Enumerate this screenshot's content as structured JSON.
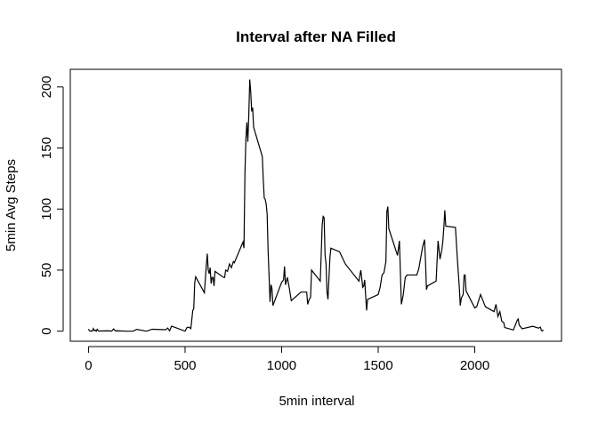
{
  "chart_data": {
    "type": "line",
    "title": "Interval after NA Filled",
    "xlabel": "5min interval",
    "ylabel": "5min Avg Steps",
    "color": "#000000",
    "x": [
      0,
      5,
      10,
      15,
      20,
      25,
      30,
      35,
      40,
      45,
      50,
      55,
      100,
      110,
      120,
      130,
      140,
      150,
      200,
      230,
      250,
      300,
      330,
      400,
      410,
      420,
      430,
      440,
      450,
      500,
      510,
      520,
      530,
      540,
      545,
      550,
      555,
      600,
      610,
      615,
      620,
      625,
      630,
      635,
      640,
      645,
      650,
      655,
      700,
      705,
      710,
      720,
      730,
      740,
      750,
      755,
      800,
      805,
      810,
      815,
      820,
      825,
      830,
      835,
      840,
      845,
      850,
      855,
      900,
      905,
      910,
      915,
      920,
      925,
      930,
      935,
      940,
      945,
      950,
      955,
      1000,
      1010,
      1015,
      1020,
      1030,
      1040,
      1050,
      1100,
      1130,
      1135,
      1140,
      1150,
      1155,
      1200,
      1205,
      1210,
      1215,
      1220,
      1225,
      1230,
      1235,
      1240,
      1250,
      1255,
      1300,
      1330,
      1400,
      1410,
      1420,
      1425,
      1430,
      1440,
      1445,
      1500,
      1510,
      1520,
      1530,
      1540,
      1545,
      1550,
      1555,
      1600,
      1610,
      1620,
      1630,
      1640,
      1650,
      1700,
      1710,
      1730,
      1740,
      1745,
      1750,
      1755,
      1800,
      1805,
      1810,
      1820,
      1830,
      1835,
      1840,
      1845,
      1850,
      1900,
      1910,
      1920,
      1925,
      1930,
      1940,
      1945,
      1950,
      1955,
      2000,
      2010,
      2030,
      2040,
      2050,
      2055,
      2100,
      2110,
      2120,
      2130,
      2140,
      2150,
      2155,
      2200,
      2210,
      2220,
      2225,
      2230,
      2245,
      2300,
      2330,
      2340,
      2345,
      2350,
      2355
    ],
    "values": [
      1.7,
      0.3,
      0.1,
      0.2,
      0.1,
      2.1,
      0.5,
      0.9,
      0,
      1.5,
      0.3,
      0.1,
      0.3,
      0.2,
      0,
      1.8,
      0.2,
      0.3,
      0,
      0,
      1.5,
      0,
      1.6,
      1.2,
      2.6,
      0.3,
      4.1,
      3.5,
      3,
      0,
      3,
      3.3,
      2.1,
      17,
      18.3,
      39.5,
      44.5,
      31.5,
      53.8,
      63.5,
      50,
      47,
      52,
      39,
      44,
      44,
      37,
      49,
      44,
      44,
      50,
      49,
      55,
      52,
      57,
      56,
      73,
      68,
      129,
      157,
      171,
      155,
      177,
      206,
      196,
      180,
      183,
      167,
      143,
      124,
      109,
      108,
      104,
      96,
      66,
      45,
      24,
      38,
      35,
      21,
      40,
      42,
      53,
      38,
      44,
      35,
      25,
      32,
      32,
      22,
      25,
      28,
      50,
      41,
      63,
      87,
      94,
      93,
      62,
      55,
      32,
      26,
      60,
      68,
      65,
      55,
      41,
      50,
      36,
      37,
      42,
      17,
      26,
      30,
      36,
      46,
      48,
      57,
      98,
      102,
      84,
      62,
      74,
      22,
      30,
      44,
      46,
      46,
      51,
      69,
      75,
      57,
      34,
      37,
      41,
      58,
      74,
      59,
      67,
      74,
      85,
      99,
      86,
      85,
      59,
      36,
      21,
      27,
      30,
      46,
      46,
      33,
      19,
      20,
      30,
      26,
      22,
      20,
      16,
      22,
      12,
      16,
      8,
      7,
      3,
      1,
      5,
      9,
      10,
      5,
      2,
      4,
      2.5,
      3.3,
      0.6,
      0.2,
      1.1
    ],
    "xlim": [
      -94.2,
      2449.2
    ],
    "ylim": [
      -8.25,
      214.42
    ],
    "xticks": [
      0,
      500,
      1000,
      1500,
      2000
    ],
    "yticks": [
      0,
      50,
      100,
      150,
      200
    ]
  }
}
